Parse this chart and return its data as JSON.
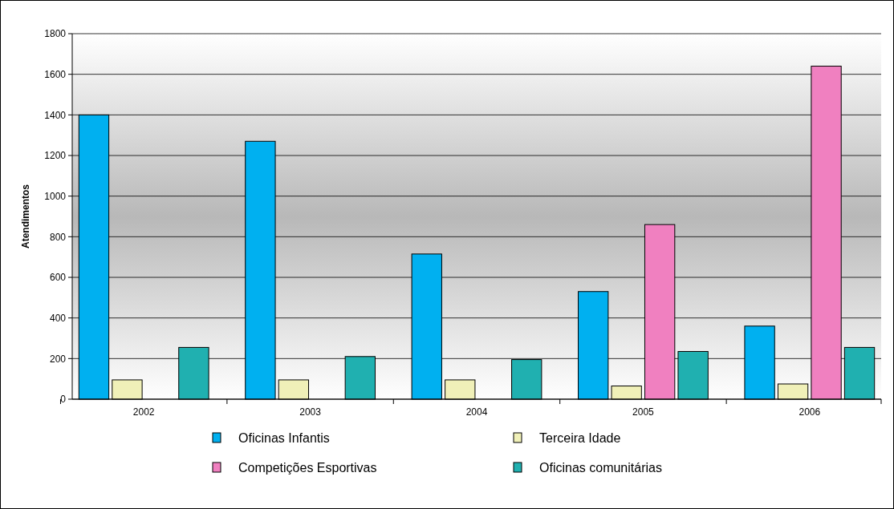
{
  "chart_data": {
    "type": "bar",
    "ylabel": "Atendimentos",
    "categories": [
      "2002",
      "2003",
      "2004",
      "2005",
      "2006"
    ],
    "series": [
      {
        "name": "Oficinas Infantis",
        "color": "#00b0f0",
        "values": [
          1400,
          1270,
          715,
          530,
          360
        ]
      },
      {
        "name": "Terceira Idade",
        "color": "#f0f0b8",
        "values": [
          95,
          95,
          95,
          65,
          75
        ]
      },
      {
        "name": "Competições Esportivas",
        "color": "#f080c0",
        "values": [
          null,
          null,
          null,
          860,
          1640
        ]
      },
      {
        "name": "Oficinas comunitárias",
        "color": "#20b0b0",
        "values": [
          255,
          210,
          195,
          235,
          255
        ]
      }
    ],
    "ylim": [
      0,
      1800
    ],
    "yticks": [
      0,
      200,
      400,
      600,
      800,
      1000,
      1200,
      1400,
      1600,
      1800
    ],
    "grid": "y",
    "legend": "bottom"
  }
}
